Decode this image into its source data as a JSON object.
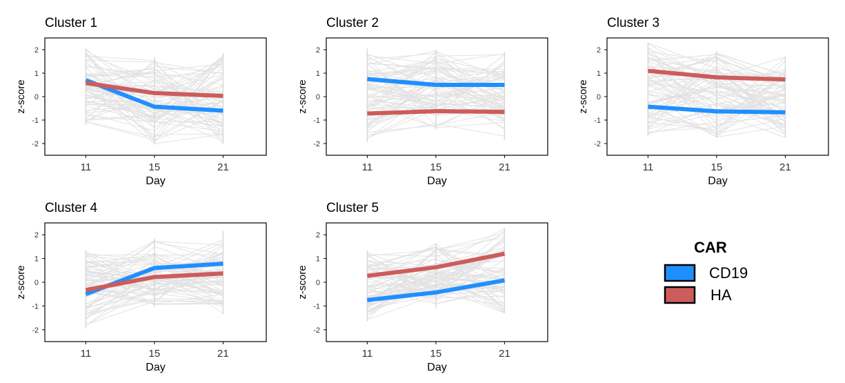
{
  "colors": {
    "CD19": "#1f8fff",
    "HA": "#cd5c5c",
    "background_lines": "#e2e2e2"
  },
  "legend": {
    "title": "CAR",
    "placement": "right",
    "entries": [
      {
        "name": "CD19",
        "color": "#1f8fff"
      },
      {
        "name": "HA",
        "color": "#cd5c5c"
      }
    ]
  },
  "chart_data": [
    {
      "type": "line",
      "title": "Cluster 1",
      "xlabel": "Day",
      "ylabel": "z-score",
      "x": [
        "11",
        "15",
        "21"
      ],
      "ylim": [
        -2.5,
        2.5
      ],
      "yticks": [
        -2,
        -1,
        0,
        1,
        2
      ],
      "series": [
        {
          "name": "CD19",
          "values": [
            0.7,
            -0.43,
            -0.6
          ]
        },
        {
          "name": "HA",
          "values": [
            0.58,
            0.15,
            0.03
          ]
        }
      ],
      "background_range": {
        "min": [
          -1.2,
          -2.05,
          -2.0
        ],
        "max": [
          2.05,
          1.7,
          1.85
        ]
      }
    },
    {
      "type": "line",
      "title": "Cluster 2",
      "xlabel": "Day",
      "ylabel": "z-score",
      "x": [
        "11",
        "15",
        "21"
      ],
      "ylim": [
        -2.5,
        2.5
      ],
      "yticks": [
        -2,
        -1,
        0,
        1,
        2
      ],
      "series": [
        {
          "name": "CD19",
          "values": [
            0.75,
            0.5,
            0.5
          ]
        },
        {
          "name": "HA",
          "values": [
            -0.72,
            -0.62,
            -0.65
          ]
        }
      ],
      "background_range": {
        "min": [
          -1.95,
          -1.4,
          -1.85
        ],
        "max": [
          2.05,
          2.0,
          1.9
        ]
      }
    },
    {
      "type": "line",
      "title": "Cluster 3",
      "xlabel": "Day",
      "ylabel": "z-score",
      "x": [
        "11",
        "15",
        "21"
      ],
      "ylim": [
        -2.5,
        2.5
      ],
      "yticks": [
        -2,
        -1,
        0,
        1,
        2
      ],
      "series": [
        {
          "name": "CD19",
          "values": [
            -0.43,
            -0.63,
            -0.67
          ]
        },
        {
          "name": "HA",
          "values": [
            1.1,
            0.82,
            0.73
          ]
        }
      ],
      "background_range": {
        "min": [
          -1.65,
          -1.75,
          -1.75
        ],
        "max": [
          2.3,
          1.95,
          1.7
        ]
      }
    },
    {
      "type": "line",
      "title": "Cluster 4",
      "xlabel": "Day",
      "ylabel": "z-score",
      "x": [
        "11",
        "15",
        "21"
      ],
      "ylim": [
        -2.5,
        2.5
      ],
      "yticks": [
        -2,
        -1,
        0,
        1,
        2
      ],
      "series": [
        {
          "name": "CD19",
          "values": [
            -0.5,
            0.6,
            0.78
          ]
        },
        {
          "name": "HA",
          "values": [
            -0.33,
            0.22,
            0.37
          ]
        }
      ],
      "background_range": {
        "min": [
          -1.95,
          -1.05,
          -1.35
        ],
        "max": [
          1.35,
          1.85,
          2.15
        ]
      }
    },
    {
      "type": "line",
      "title": "Cluster 5",
      "xlabel": "Day",
      "ylabel": "z-score",
      "x": [
        "11",
        "15",
        "21"
      ],
      "ylim": [
        -2.5,
        2.5
      ],
      "yticks": [
        -2,
        -1,
        0,
        1,
        2
      ],
      "series": [
        {
          "name": "CD19",
          "values": [
            -0.75,
            -0.43,
            0.08
          ]
        },
        {
          "name": "HA",
          "values": [
            0.27,
            0.63,
            1.2
          ]
        }
      ],
      "background_range": {
        "min": [
          -1.65,
          -1.1,
          -1.3
        ],
        "max": [
          1.35,
          1.65,
          2.3
        ]
      }
    }
  ]
}
